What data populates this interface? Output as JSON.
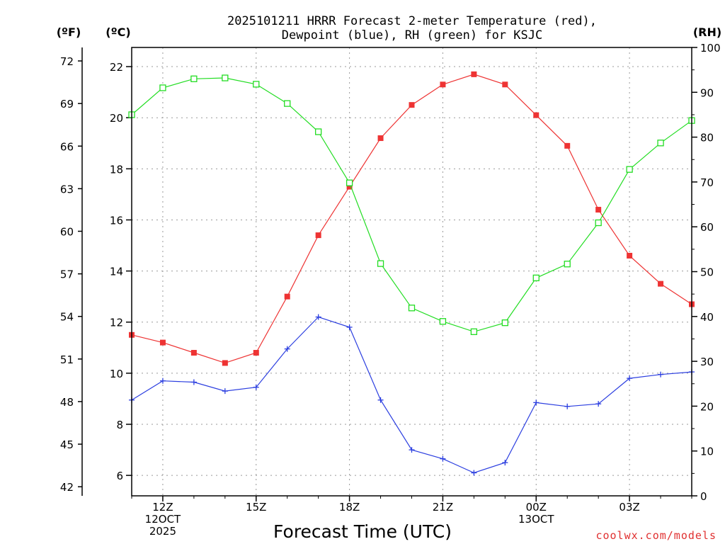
{
  "title_line1": "2025101211 HRRR Forecast 2-meter Temperature (red),",
  "title_line2": "Dewpoint (blue), RH (green) for KSJC",
  "unit_f": "(ºF)",
  "unit_c": "(ºC)",
  "unit_rh": "(RH)",
  "xlabel": "Forecast Time (UTC)",
  "credit": "coolwx.com/models",
  "colors": {
    "temperature": "#ee3333",
    "dewpoint": "#2b3ee0",
    "rh": "#22dd22",
    "grid": "#999999"
  },
  "chart_data": {
    "type": "line",
    "title": "2025101211 HRRR Forecast 2-meter Temperature (red), Dewpoint (blue), RH (green) for KSJC",
    "xlabel": "Forecast Time (UTC)",
    "x": [
      11,
      12,
      13,
      14,
      15,
      16,
      17,
      18,
      19,
      20,
      21,
      22,
      23,
      24,
      25,
      26,
      27,
      28,
      29
    ],
    "xlim": [
      11,
      29
    ],
    "x_ticks": [
      {
        "x": 12,
        "lines": [
          "12Z",
          "12OCT",
          "2025"
        ]
      },
      {
        "x": 15,
        "lines": [
          "15Z"
        ]
      },
      {
        "x": 18,
        "lines": [
          "18Z"
        ]
      },
      {
        "x": 21,
        "lines": [
          "21Z"
        ]
      },
      {
        "x": 24,
        "lines": [
          "00Z",
          "13OCT"
        ]
      },
      {
        "x": 27,
        "lines": [
          "03Z"
        ]
      }
    ],
    "y_left_c": {
      "label": "(ºC)",
      "ylim": [
        5.2,
        22.75
      ],
      "ticks": [
        6,
        8,
        10,
        12,
        14,
        16,
        18,
        20,
        22
      ]
    },
    "y_left_f": {
      "label": "(ºF)",
      "ticks": [
        42,
        45,
        48,
        51,
        54,
        57,
        60,
        63,
        66,
        69,
        72
      ]
    },
    "y_right_rh": {
      "label": "(RH)",
      "ylim": [
        0,
        100
      ],
      "ticks": [
        0,
        10,
        20,
        30,
        40,
        50,
        60,
        70,
        80,
        90,
        100
      ]
    },
    "series": [
      {
        "name": "Temperature",
        "axis": "c",
        "color": "#ee3333",
        "marker": "filled-square",
        "values": [
          11.5,
          11.2,
          10.8,
          10.4,
          10.8,
          13.0,
          15.4,
          17.3,
          19.2,
          20.5,
          21.3,
          21.7,
          21.3,
          20.1,
          18.9,
          16.4,
          14.6,
          13.5,
          12.7
        ]
      },
      {
        "name": "Dewpoint",
        "axis": "c",
        "color": "#2b3ee0",
        "marker": "plus",
        "values": [
          8.95,
          9.7,
          9.65,
          9.3,
          9.45,
          10.95,
          12.2,
          11.8,
          8.95,
          7.0,
          6.65,
          6.1,
          6.5,
          8.85,
          8.7,
          8.8,
          9.8,
          9.95,
          10.05
        ]
      },
      {
        "name": "RH",
        "axis": "rh",
        "color": "#22dd22",
        "marker": "open-square",
        "values": [
          85,
          91,
          93,
          93.2,
          91.8,
          87.5,
          81.2,
          69.8,
          51.8,
          41.9,
          38.9,
          36.6,
          38.6,
          48.6,
          51.7,
          60.9,
          72.8,
          78.7,
          83.7
        ]
      }
    ]
  }
}
